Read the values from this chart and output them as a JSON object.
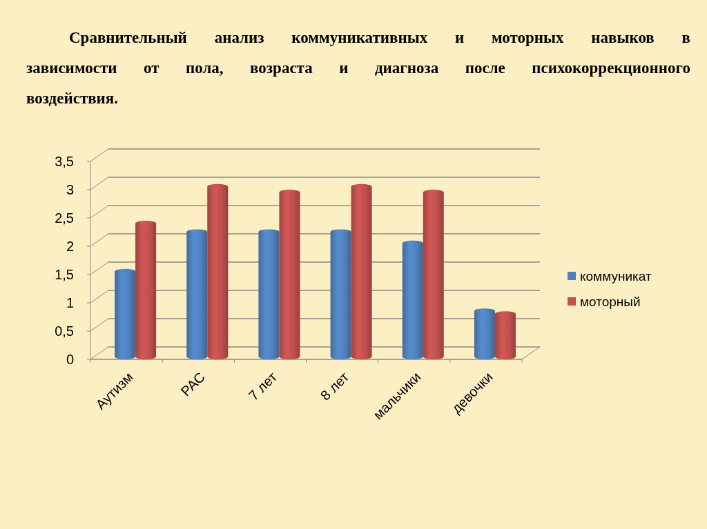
{
  "chart_data": {
    "type": "bar",
    "title": "Сравнительный анализ коммуникативных и моторных навыков в зависимости от пола, возраста и диагноза после психокоррекционного воздействия.",
    "categories": [
      "Аутизм",
      "РАС",
      "7 лет",
      "8 лет",
      "мальчики",
      "девочки"
    ],
    "series": [
      {
        "name": "коммуникат",
        "color": "#4f81bd",
        "values": [
          1.6,
          2.3,
          2.3,
          2.3,
          2.1,
          0.9
        ]
      },
      {
        "name": "моторный",
        "color": "#c0504d",
        "values": [
          2.45,
          3.1,
          3.0,
          3.1,
          3.0,
          0.85
        ]
      }
    ],
    "ylim": [
      0,
      3.5
    ],
    "yticks": [
      0,
      {
        "value": 0.5,
        "label": "0,5"
      },
      1,
      {
        "value": 1.5,
        "label": "1,5"
      },
      2,
      {
        "value": 2.5,
        "label": "2,5"
      },
      3,
      {
        "value": 3.5,
        "label": "3,5"
      }
    ],
    "grid": "y",
    "legend": "right"
  }
}
